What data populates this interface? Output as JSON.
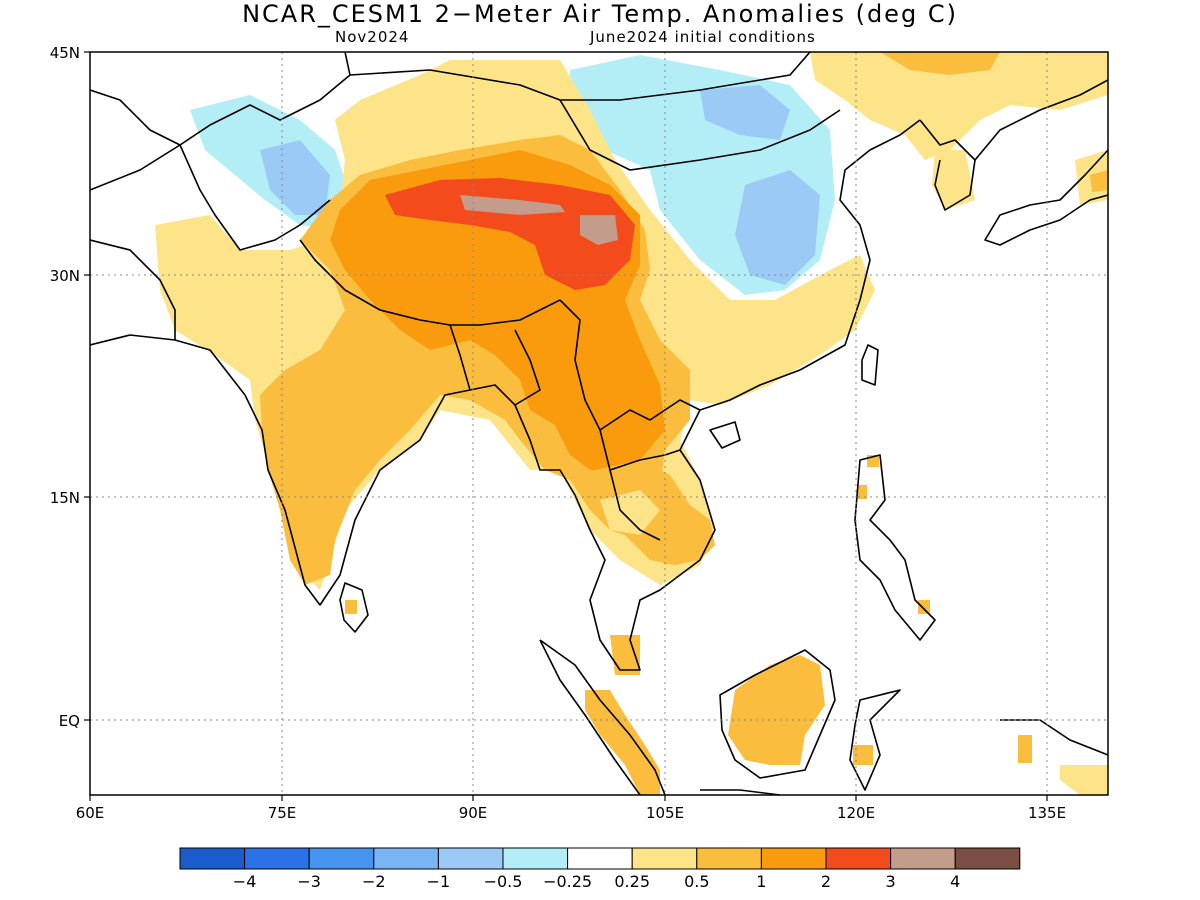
{
  "title": "NCAR_CESM1 2−Meter Air Temp. Anomalies (deg C)",
  "subtitle_left": "Nov2024",
  "subtitle_right": "June2024 initial conditions",
  "axes": {
    "lat_labels": [
      {
        "label": "45N",
        "value": 45
      },
      {
        "label": "30N",
        "value": 30
      },
      {
        "label": "15N",
        "value": 15
      },
      {
        "label": "EQ",
        "value": 0
      }
    ],
    "lon_labels": [
      {
        "label": "60E",
        "value": 60
      },
      {
        "label": "75E",
        "value": 75
      },
      {
        "label": "90E",
        "value": 90
      },
      {
        "label": "105E",
        "value": 105
      },
      {
        "label": "120E",
        "value": 120
      },
      {
        "label": "135E",
        "value": 135
      }
    ],
    "lon_range": [
      60,
      140
    ],
    "lat_range": [
      -5,
      45
    ],
    "grid": "dotted"
  },
  "colorbar": {
    "colors": [
      "#1a5ccc",
      "#2b72e6",
      "#4794f0",
      "#79b4f5",
      "#9ccaf7",
      "#b3eef7",
      "#ffffff",
      "#fde488",
      "#fbbd3d",
      "#f99b0c",
      "#f34b1c",
      "#c49c8c",
      "#7a4e42"
    ],
    "labels": [
      "−4",
      "−3",
      "−2",
      "−1",
      "−0.5",
      "−0.25",
      "0.25",
      "0.5",
      "1",
      "2",
      "3",
      "4"
    ]
  }
}
